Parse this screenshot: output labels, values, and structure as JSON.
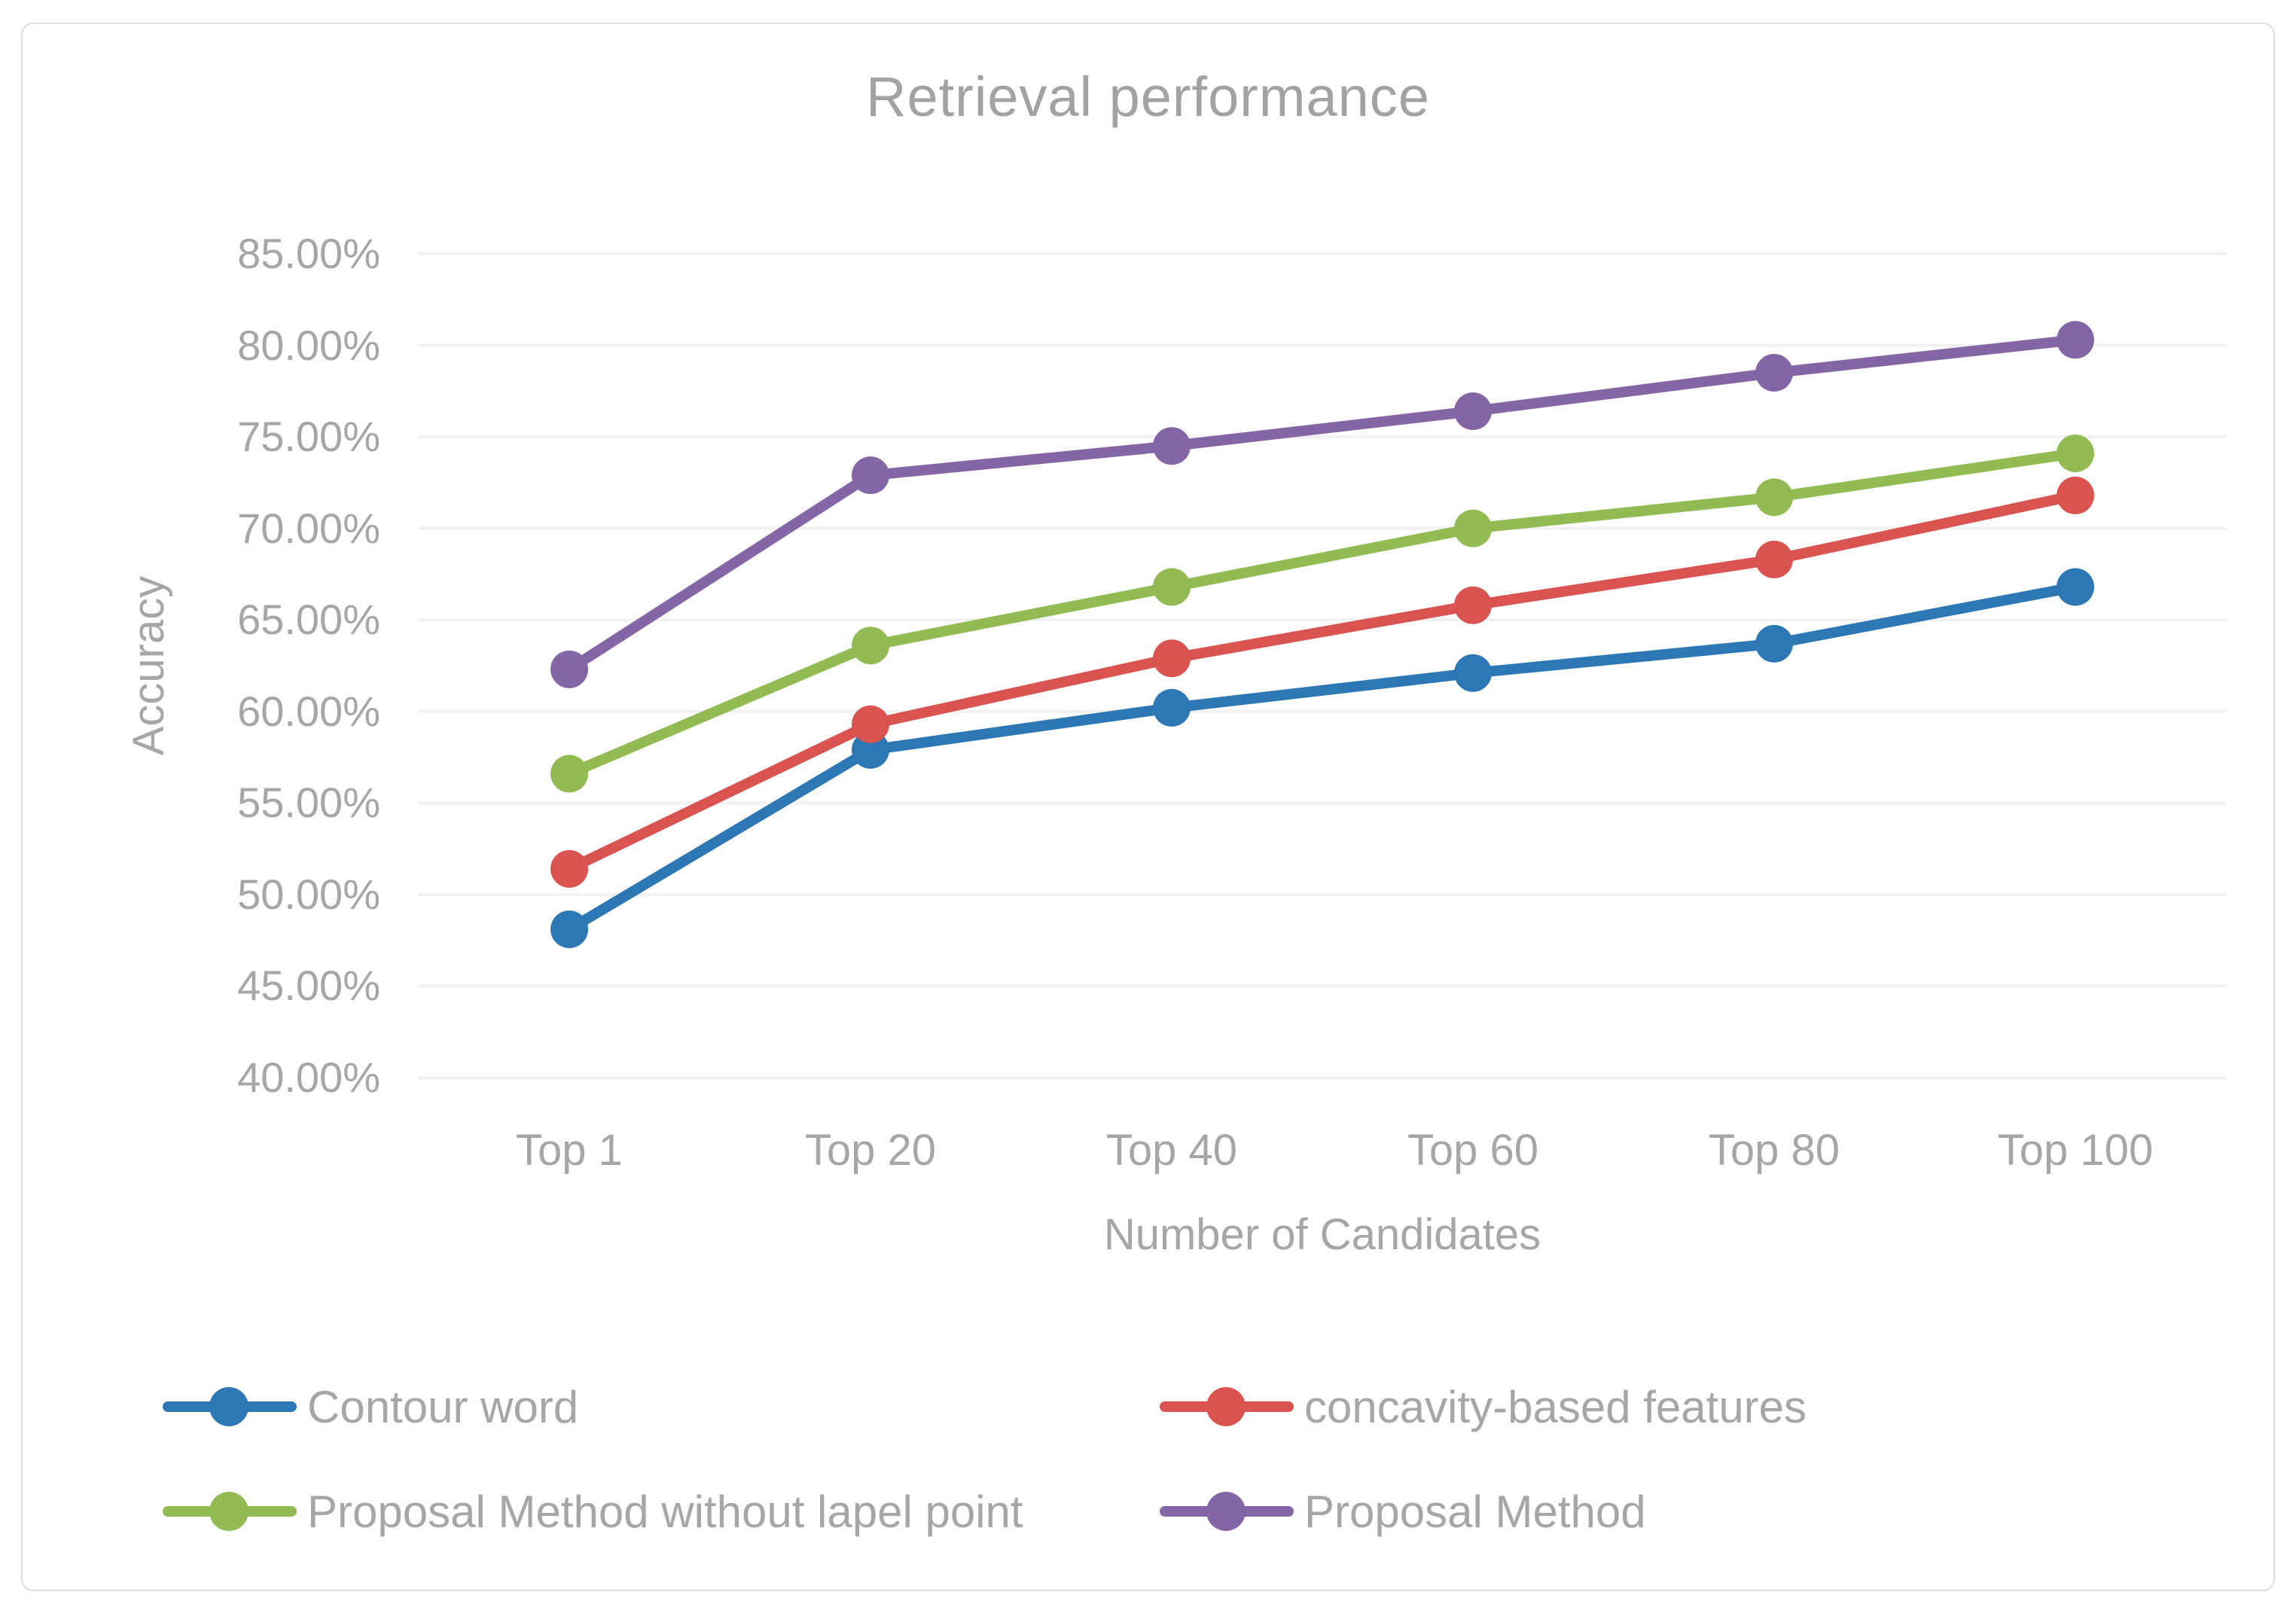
{
  "title": "Retrieval performance",
  "chart_data": {
    "type": "line",
    "title": "Retrieval performance",
    "xlabel": "Number of Candidates",
    "ylabel": "Accuracy",
    "categories": [
      "Top 1",
      "Top 20",
      "Top 40",
      "Top 60",
      "Top 80",
      "Top 100"
    ],
    "y_ticks": [
      "85.00%",
      "80.00%",
      "75.00%",
      "70.00%",
      "65.00%",
      "60.00%",
      "55.00%",
      "50.00%",
      "45.00%",
      "40.00%"
    ],
    "ylim": [
      40,
      85
    ],
    "y_step": 5,
    "grid": true,
    "legend_position": "bottom",
    "colors": {
      "blue": "#2E77B5",
      "red": "#D95450",
      "green": "#92BC53",
      "purple": "#8465A5",
      "text_gray": "#A6A6A6",
      "gridline": "#F1F1F1",
      "frame_border": "#DEDEDE"
    },
    "series": [
      {
        "name": "Contour word",
        "color": "#2E77B5",
        "values": [
          48.1,
          57.9,
          60.2,
          62.1,
          63.7,
          66.8
        ]
      },
      {
        "name": "concavity-based features",
        "color": "#D95450",
        "values": [
          51.4,
          59.3,
          62.9,
          65.8,
          68.3,
          71.8
        ]
      },
      {
        "name": "Proposal Method without lapel point",
        "color": "#92BC53",
        "values": [
          56.6,
          63.6,
          66.8,
          70.0,
          71.7,
          74.1
        ]
      },
      {
        "name": "Proposal Method",
        "color": "#8465A5",
        "values": [
          62.3,
          72.9,
          74.5,
          76.4,
          78.5,
          80.3
        ]
      }
    ]
  }
}
